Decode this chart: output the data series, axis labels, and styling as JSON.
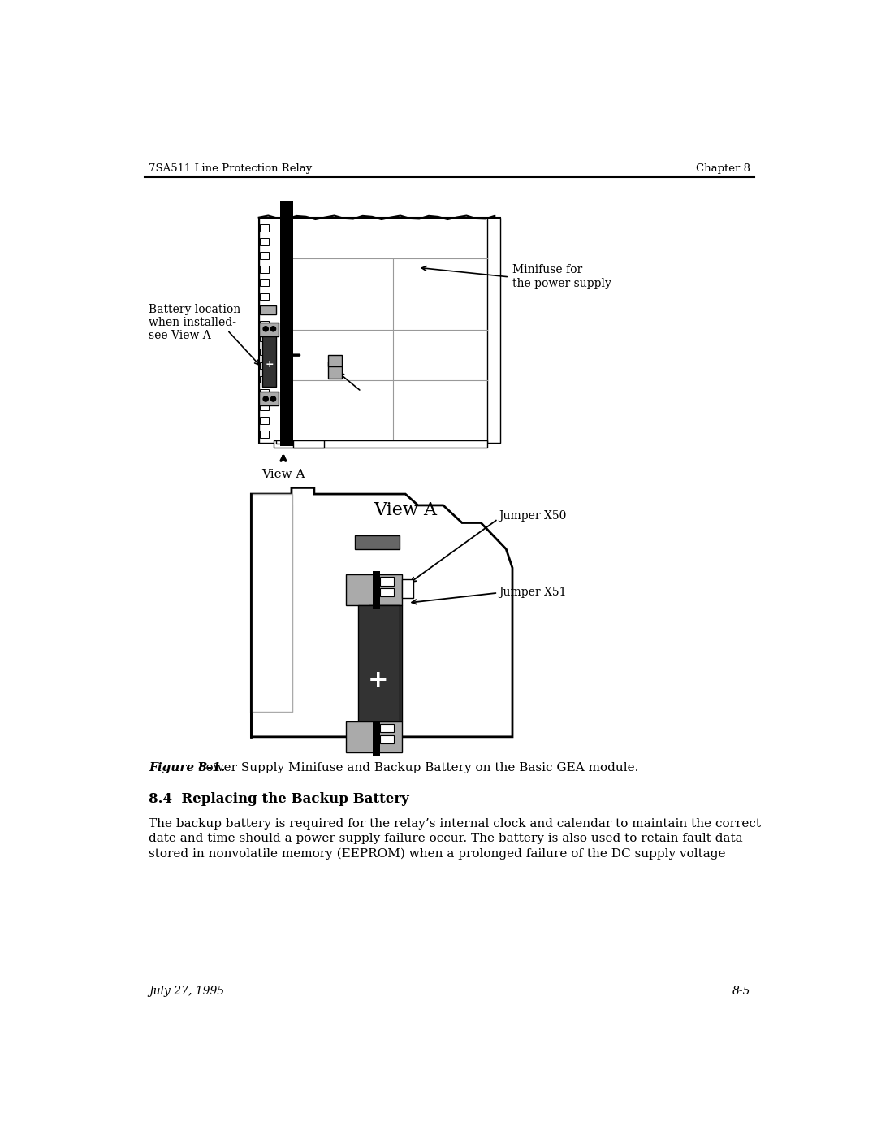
{
  "page_title_left": "7SA511 Line Protection Relay",
  "page_title_right": "Chapter 8",
  "footer_left": "July 27, 1995",
  "footer_right": "8-5",
  "figure_caption_bold": "Figure 8-1.",
  "figure_caption_text": " Power Supply Minifuse and Backup Battery on the Basic GEA module.",
  "section_heading": "8.4  Replacing the Backup Battery",
  "body_text": "The backup battery is required for the relay’s internal clock and calendar to maintain the correct\ndate and time should a power supply failure occur. The battery is also used to retain fault data\nstored in nonvolatile memory (EEPROM) when a prolonged failure of the DC supply voltage",
  "label_battery": "Battery location\nwhen installed-\nsee View A",
  "label_minifuse": "Minifuse for\nthe power supply",
  "label_view_a_below": "View A",
  "label_view_a_title": "View A",
  "label_jumper_x50": "Jumper X50",
  "label_jumper_x51": "Jumper X51",
  "bg_color": "#ffffff",
  "text_color": "#000000",
  "dark_color": "#333333",
  "gray_color": "#aaaaaa",
  "mid_gray": "#666666",
  "light_gray": "#cccccc",
  "line_color": "#000000"
}
